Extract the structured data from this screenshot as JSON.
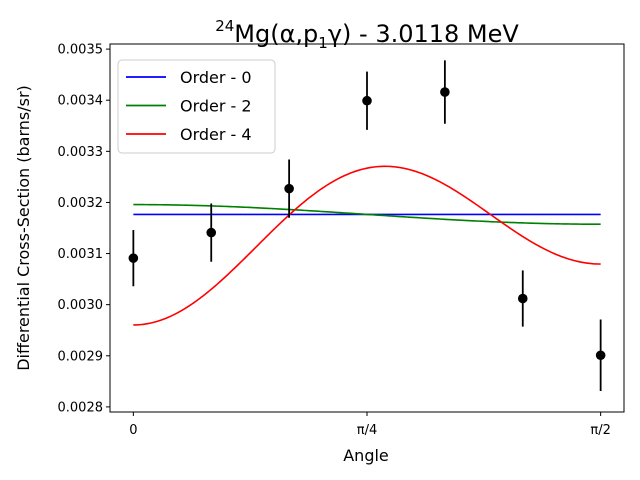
{
  "chart_data": {
    "type": "line",
    "title": {
      "superscript": "24",
      "main": "Mg(α,p",
      "subscript": "1",
      "rest": "γ) - 3.0118 MeV"
    },
    "xlabel": "Angle",
    "ylabel": "Differential Cross-Section (barns/sr)",
    "xlim": [
      -0.0785,
      1.6493
    ],
    "ylim": [
      0.00279,
      0.00351
    ],
    "x_ticks": [
      {
        "value": 0,
        "label": "0"
      },
      {
        "value": 0.7854,
        "label": "π/4"
      },
      {
        "value": 1.5708,
        "label": "π/2"
      }
    ],
    "y_ticks": [
      {
        "value": 0.0028,
        "label": "0.0028"
      },
      {
        "value": 0.0029,
        "label": "0.0029"
      },
      {
        "value": 0.003,
        "label": "0.0030"
      },
      {
        "value": 0.0031,
        "label": "0.0031"
      },
      {
        "value": 0.0032,
        "label": "0.0032"
      },
      {
        "value": 0.0033,
        "label": "0.0033"
      },
      {
        "value": 0.0034,
        "label": "0.0034"
      },
      {
        "value": 0.0035,
        "label": "0.0035"
      }
    ],
    "grid": false,
    "legend_position": "top-left",
    "data_points": [
      {
        "x": 0.0,
        "y": 0.003091,
        "err": 5.5e-05
      },
      {
        "x": 0.2618,
        "y": 0.003141,
        "err": 5.7e-05
      },
      {
        "x": 0.5236,
        "y": 0.003227,
        "err": 5.7e-05
      },
      {
        "x": 0.7854,
        "y": 0.003399,
        "err": 5.7e-05
      },
      {
        "x": 1.0472,
        "y": 0.003416,
        "err": 6.2e-05
      },
      {
        "x": 1.309,
        "y": 0.003012,
        "err": 5.5e-05
      },
      {
        "x": 1.5708,
        "y": 0.002901,
        "err": 7e-05
      }
    ],
    "series": [
      {
        "name": "Order - 0",
        "color": "#0000ff",
        "model": "legendre",
        "coeffs": [
          0.0031765
        ]
      },
      {
        "name": "Order - 2",
        "color": "#008000",
        "model": "legendre",
        "coeffs": [
          0.0031702,
          2.56e-05
        ]
      },
      {
        "name": "Order - 4",
        "color": "#ff0000",
        "model": "legendre",
        "coeffs": [
          0.0031716,
          1.47e-05,
          -0.000226
        ]
      }
    ],
    "marker_color": "#000000"
  }
}
